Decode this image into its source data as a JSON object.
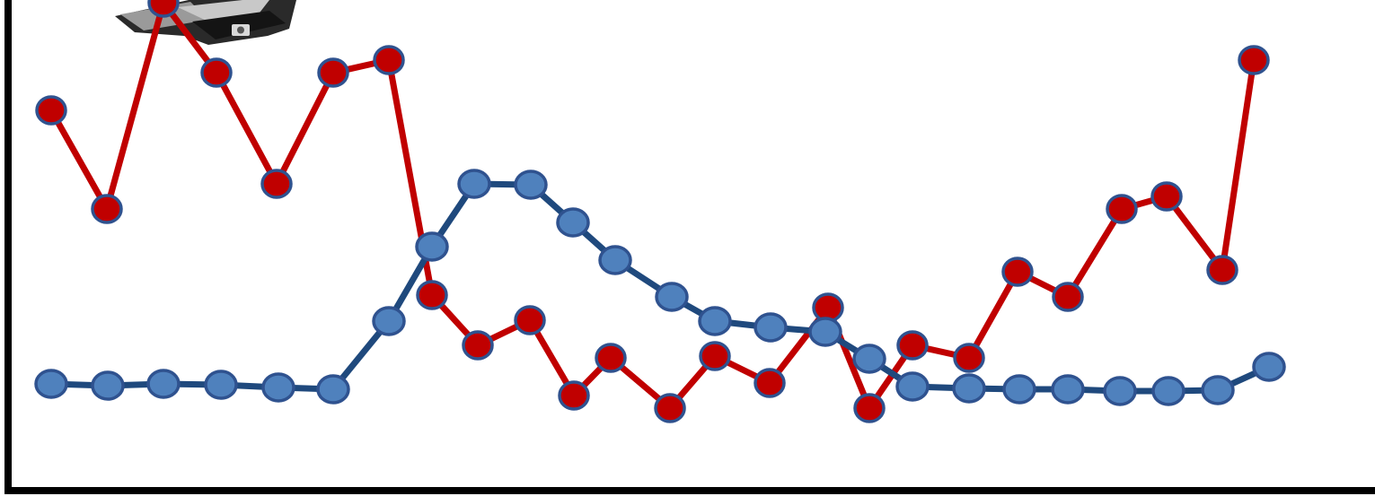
{
  "chart_data": {
    "type": "line",
    "title": "",
    "xlabel": "",
    "ylabel": "",
    "grid": false,
    "legend": "none",
    "series": [
      {
        "color": "#c00000",
        "marker_fill": "#c00000",
        "marker_stroke": "#2f528f",
        "points": [
          [
            57,
            123
          ],
          [
            119,
            233
          ],
          [
            182,
            3
          ],
          [
            241,
            81
          ],
          [
            308,
            205
          ],
          [
            371,
            81
          ],
          [
            433,
            67
          ],
          [
            481,
            329
          ],
          [
            532,
            385
          ],
          [
            590,
            357
          ],
          [
            639,
            441
          ],
          [
            680,
            399
          ],
          [
            746,
            455
          ],
          [
            796,
            397
          ],
          [
            857,
            427
          ],
          [
            922,
            343
          ],
          [
            968,
            455
          ],
          [
            1016,
            385
          ],
          [
            1079,
            399
          ],
          [
            1133,
            303
          ],
          [
            1189,
            331
          ],
          [
            1249,
            233
          ],
          [
            1299,
            219
          ],
          [
            1361,
            301
          ],
          [
            1396,
            67
          ]
        ]
      },
      {
        "color": "#1f497d",
        "marker_fill": "#4f81bd",
        "marker_stroke": "#2f528f",
        "points": [
          [
            57,
            428
          ],
          [
            120,
            430
          ],
          [
            182,
            428
          ],
          [
            246,
            429
          ],
          [
            310,
            432
          ],
          [
            371,
            434
          ],
          [
            433,
            358
          ],
          [
            481,
            275
          ],
          [
            528,
            205
          ],
          [
            591,
            206
          ],
          [
            638,
            248
          ],
          [
            685,
            290
          ],
          [
            748,
            331
          ],
          [
            796,
            358
          ],
          [
            858,
            365
          ],
          [
            919,
            370
          ],
          [
            968,
            400
          ],
          [
            1016,
            431
          ],
          [
            1079,
            433
          ],
          [
            1135,
            434
          ],
          [
            1189,
            434
          ],
          [
            1247,
            436
          ],
          [
            1301,
            436
          ],
          [
            1356,
            435
          ],
          [
            1413,
            409
          ]
        ]
      }
    ]
  },
  "decor": {
    "device_icon": "hp-device-icon"
  }
}
